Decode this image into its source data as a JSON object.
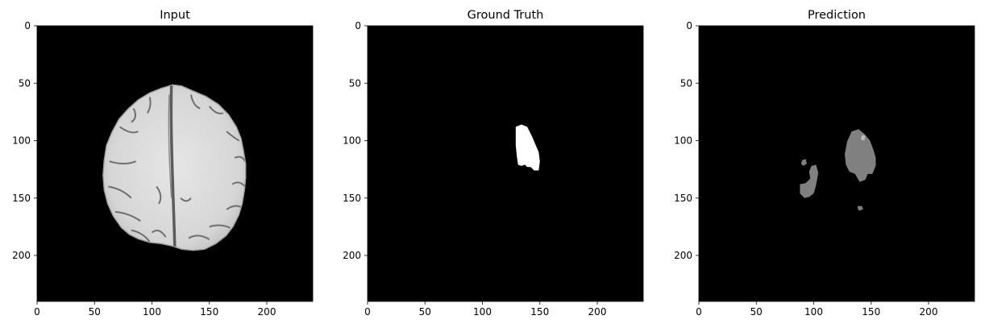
{
  "chart_data": [
    {
      "type": "heatmap",
      "title": "Input",
      "xlim": [
        0,
        240
      ],
      "ylim": [
        240,
        0
      ],
      "xticks": [
        0,
        50,
        100,
        150,
        200
      ],
      "yticks": [
        0,
        50,
        100,
        150,
        200
      ],
      "colormap": "gray",
      "content": "brain MRI axial slice"
    },
    {
      "type": "heatmap",
      "title": "Ground Truth",
      "xlim": [
        0,
        240
      ],
      "ylim": [
        240,
        0
      ],
      "xticks": [
        0,
        50,
        100,
        150,
        200
      ],
      "yticks": [
        0,
        50,
        100,
        150,
        200
      ],
      "colormap": "gray",
      "regions": [
        {
          "label": "mask",
          "color": "#ffffff",
          "polygon": [
            [
              129,
              88
            ],
            [
              134,
              86
            ],
            [
              139,
              88
            ],
            [
              143,
              96
            ],
            [
              146,
              103
            ],
            [
              149,
              110
            ],
            [
              150,
              118
            ],
            [
              149,
              126
            ],
            [
              145,
              126
            ],
            [
              142,
              123
            ],
            [
              139,
              123
            ],
            [
              137,
              121
            ],
            [
              134,
              122
            ],
            [
              131,
              121
            ],
            [
              130,
              114
            ],
            [
              129,
              104
            ],
            [
              129,
              95
            ]
          ]
        }
      ]
    },
    {
      "type": "heatmap",
      "title": "Prediction",
      "xlim": [
        0,
        240
      ],
      "ylim": [
        240,
        0
      ],
      "xticks": [
        0,
        50,
        100,
        150,
        200
      ],
      "yticks": [
        0,
        50,
        100,
        150,
        200
      ],
      "colormap": "gray",
      "regions": [
        {
          "label": "main",
          "color": "#808080",
          "polygon": [
            [
              129,
              101
            ],
            [
              133,
              92
            ],
            [
              139,
              90
            ],
            [
              144,
              94
            ],
            [
              149,
              100
            ],
            [
              152,
              108
            ],
            [
              154,
              115
            ],
            [
              154,
              122
            ],
            [
              151,
              129
            ],
            [
              147,
              129
            ],
            [
              145,
              134
            ],
            [
              140,
              136
            ],
            [
              136,
              129
            ],
            [
              131,
              127
            ],
            [
              128,
              121
            ],
            [
              127,
              112
            ]
          ]
        },
        {
          "label": "left-upper",
          "color": "#808080",
          "polygon": [
            [
              90,
              117
            ],
            [
              93,
              116
            ],
            [
              94,
              120
            ],
            [
              91,
              122
            ],
            [
              89,
              120
            ]
          ]
        },
        {
          "label": "left-lower",
          "color": "#808080",
          "polygon": [
            [
              98,
              122
            ],
            [
              102,
              121
            ],
            [
              104,
              128
            ],
            [
              102,
              139
            ],
            [
              100,
              146
            ],
            [
              96,
              149
            ],
            [
              92,
              150
            ],
            [
              88,
              146
            ],
            [
              88,
              138
            ],
            [
              93,
              137
            ],
            [
              97,
              133
            ],
            [
              96,
              127
            ]
          ]
        },
        {
          "label": "bottom",
          "color": "#808080",
          "polygon": [
            [
              138,
              157
            ],
            [
              142,
              157
            ],
            [
              143,
              160
            ],
            [
              139,
              161
            ]
          ]
        },
        {
          "label": "light-spot",
          "color": "#bdbdbd",
          "polygon": [
            [
              142,
              95
            ],
            [
              145,
              96
            ],
            [
              144,
              100
            ],
            [
              141,
              99
            ]
          ]
        }
      ]
    }
  ]
}
